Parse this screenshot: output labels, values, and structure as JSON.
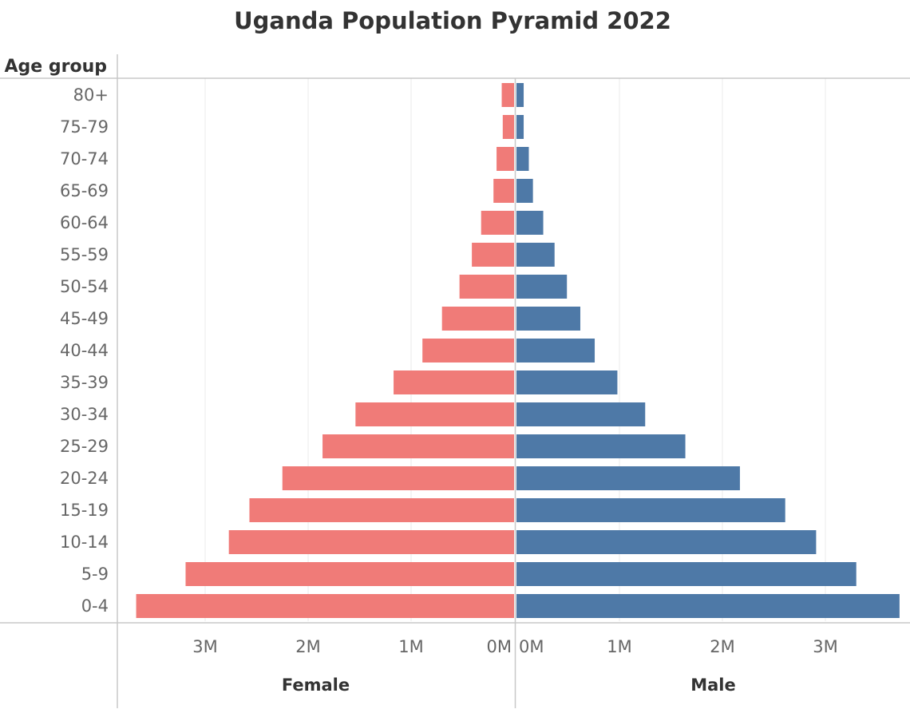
{
  "chart_data": {
    "type": "bar",
    "orientation": "horizontal",
    "layout": "population-pyramid",
    "title": "Uganda Population Pyramid 2022",
    "category_header": "Age group",
    "categories": [
      "80+",
      "75-79",
      "70-74",
      "65-69",
      "60-64",
      "55-59",
      "50-54",
      "45-49",
      "40-44",
      "35-39",
      "30-34",
      "25-29",
      "20-24",
      "15-19",
      "10-14",
      "5-9",
      "0-4"
    ],
    "series": [
      {
        "name": "Female",
        "color": "#f07b78",
        "values": [
          0.12,
          0.11,
          0.17,
          0.2,
          0.32,
          0.41,
          0.53,
          0.7,
          0.89,
          1.17,
          1.54,
          1.86,
          2.25,
          2.57,
          2.77,
          3.19,
          3.67
        ]
      },
      {
        "name": "Male",
        "color": "#4e79a7",
        "values": [
          0.07,
          0.07,
          0.12,
          0.16,
          0.26,
          0.37,
          0.49,
          0.62,
          0.76,
          0.98,
          1.25,
          1.64,
          2.17,
          2.61,
          2.91,
          3.3,
          3.72
        ]
      }
    ],
    "xlim": [
      0,
      3.85
    ],
    "value_unit": "millions",
    "tick_values": [
      0,
      1,
      2,
      3
    ],
    "tick_labels": [
      "0M",
      "1M",
      "2M",
      "3M"
    ],
    "grid": true,
    "legend": "none"
  }
}
